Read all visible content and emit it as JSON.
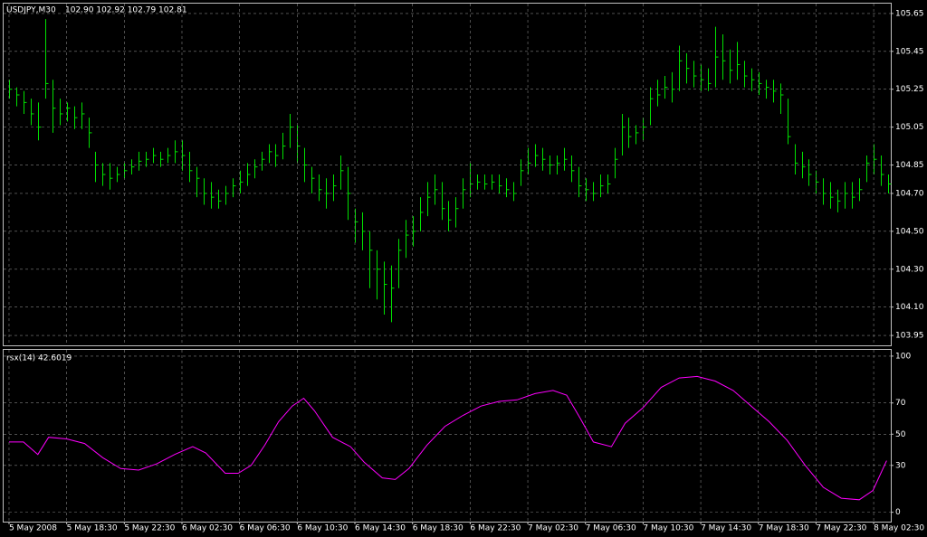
{
  "chart_data": [
    {
      "type": "ohlc",
      "title": "USDJPY,M30",
      "subtitle": "102.90 102.92 102.79 102.81",
      "color": "#00e000",
      "grid": true,
      "xlim": [
        -0.75,
        122.375
      ],
      "ylim": [
        103.898,
        105.702
      ],
      "yticks": [
        105.65,
        105.45,
        105.25,
        105.05,
        104.85,
        {
          "value": 104.7,
          "label": "104.70"
        },
        {
          "value": 104.5,
          "label": "104.50"
        },
        {
          "value": 104.3,
          "label": "104.30"
        },
        {
          "value": 104.1,
          "label": "104.10"
        },
        103.95
      ],
      "high": [
        105.3,
        105.26,
        105.24,
        105.2,
        105.18,
        105.62,
        105.3,
        105.2,
        105.18,
        105.16,
        105.18,
        105.1,
        104.92,
        104.86,
        104.86,
        104.84,
        104.86,
        104.88,
        104.92,
        104.92,
        104.94,
        104.92,
        104.94,
        104.98,
        104.98,
        104.92,
        104.84,
        104.78,
        104.76,
        104.72,
        104.74,
        104.78,
        104.82,
        104.86,
        104.88,
        104.92,
        104.96,
        104.96,
        105.02,
        105.12,
        105.06,
        104.94,
        104.84,
        104.8,
        104.78,
        104.8,
        104.9,
        104.84,
        104.62,
        104.6,
        104.5,
        104.4,
        104.34,
        104.32,
        104.46,
        104.56,
        104.58,
        104.68,
        104.76,
        104.8,
        104.76,
        104.66,
        104.68,
        104.78,
        104.86,
        104.8,
        104.8,
        104.8,
        104.8,
        104.78,
        104.76,
        104.88,
        104.94,
        104.96,
        104.94,
        104.9,
        104.9,
        104.94,
        104.9,
        104.84,
        104.78,
        104.76,
        104.8,
        104.8,
        104.94,
        105.12,
        105.1,
        105.06,
        105.1,
        105.26,
        105.3,
        105.32,
        105.34,
        105.48,
        105.44,
        105.4,
        105.38,
        105.36,
        105.58,
        105.54,
        105.46,
        105.5,
        105.4,
        105.36,
        105.34,
        105.3,
        105.3,
        105.28,
        105.2,
        104.96,
        104.92,
        104.88,
        104.82,
        104.78,
        104.76,
        104.72,
        104.76,
        104.76,
        104.78,
        104.9,
        104.96,
        104.9,
        104.8
      ],
      "low": [
        105.2,
        105.16,
        105.12,
        105.06,
        104.98,
        105.2,
        105.02,
        105.06,
        105.08,
        105.04,
        105.04,
        104.94,
        104.76,
        104.74,
        104.72,
        104.76,
        104.78,
        104.8,
        104.82,
        104.84,
        104.86,
        104.84,
        104.86,
        104.86,
        104.82,
        104.76,
        104.68,
        104.64,
        104.62,
        104.62,
        104.64,
        104.68,
        104.7,
        104.74,
        104.78,
        104.82,
        104.86,
        104.84,
        104.88,
        104.94,
        104.86,
        104.76,
        104.7,
        104.66,
        104.62,
        104.66,
        104.72,
        104.56,
        104.44,
        104.4,
        104.2,
        104.14,
        104.06,
        104.02,
        104.2,
        104.36,
        104.42,
        104.5,
        104.58,
        104.64,
        104.56,
        104.5,
        104.52,
        104.62,
        104.68,
        104.72,
        104.72,
        104.72,
        104.7,
        104.68,
        104.66,
        104.74,
        104.8,
        104.84,
        104.82,
        104.8,
        104.8,
        104.82,
        104.76,
        104.68,
        104.66,
        104.66,
        104.68,
        104.7,
        104.78,
        104.9,
        104.94,
        104.96,
        104.98,
        105.06,
        105.16,
        105.2,
        105.18,
        105.24,
        105.28,
        105.26,
        105.24,
        105.24,
        105.26,
        105.3,
        105.28,
        105.3,
        105.26,
        105.24,
        105.22,
        105.2,
        105.18,
        105.12,
        104.96,
        104.8,
        104.78,
        104.74,
        104.7,
        104.64,
        104.62,
        104.6,
        104.62,
        104.62,
        104.66,
        104.76,
        104.8,
        104.74,
        104.7
      ],
      "close": [
        105.25,
        105.22,
        105.18,
        105.12,
        105.05,
        105.28,
        105.15,
        105.12,
        105.15,
        105.1,
        105.12,
        105.02,
        104.85,
        104.8,
        104.78,
        104.8,
        104.82,
        104.84,
        104.87,
        104.88,
        104.9,
        104.88,
        104.9,
        104.92,
        104.9,
        104.82,
        104.78,
        104.7,
        104.68,
        104.66,
        104.7,
        104.74,
        104.76,
        104.8,
        104.84,
        104.88,
        104.92,
        104.9,
        104.95,
        105.05,
        104.95,
        104.85,
        104.78,
        104.72,
        104.7,
        104.74,
        104.82,
        104.7,
        104.55,
        104.5,
        104.4,
        104.3,
        104.22,
        104.2,
        104.4,
        104.48,
        104.5,
        104.6,
        104.68,
        104.72,
        104.62,
        104.56,
        104.62,
        104.72,
        104.75,
        104.76,
        104.75,
        104.76,
        104.74,
        104.72,
        104.7,
        104.82,
        104.86,
        104.9,
        104.88,
        104.85,
        104.86,
        104.88,
        104.82,
        104.74,
        104.72,
        104.7,
        104.74,
        104.75,
        104.88,
        105.05,
        105.0,
        105.02,
        105.05,
        105.2,
        105.22,
        105.26,
        105.25,
        105.4,
        105.36,
        105.32,
        105.3,
        105.28,
        105.42,
        105.4,
        105.35,
        105.38,
        105.32,
        105.3,
        105.28,
        105.26,
        105.24,
        105.22,
        105.0,
        104.86,
        104.84,
        104.8,
        104.76,
        104.7,
        104.68,
        104.66,
        104.7,
        104.68,
        104.72,
        104.86,
        104.88,
        104.8,
        104.75
      ]
    },
    {
      "type": "line",
      "title": "rsx(14) 42.6019",
      "color": "#ff00ff",
      "grid": true,
      "xlim": [
        -0.75,
        122.375
      ],
      "ylim": [
        -6,
        104
      ],
      "yticks": [
        100,
        70,
        50,
        30,
        0
      ],
      "xticks": [
        {
          "value": 0,
          "label": "5 May 2008"
        },
        {
          "value": 8,
          "label": "5 May 18:30"
        },
        {
          "value": 16,
          "label": "5 May 22:30"
        },
        {
          "value": 24,
          "label": "6 May 02:30"
        },
        {
          "value": 32,
          "label": "6 May 06:30"
        },
        {
          "value": 40,
          "label": "6 May 10:30"
        },
        {
          "value": 48,
          "label": "6 May 14:30"
        },
        {
          "value": 56,
          "label": "6 May 18:30"
        },
        {
          "value": 64,
          "label": "6 May 22:30"
        },
        {
          "value": 72,
          "label": "7 May 02:30"
        },
        {
          "value": 80,
          "label": "7 May 06:30"
        },
        {
          "value": 88,
          "label": "7 May 10:30"
        },
        {
          "value": 96,
          "label": "7 May 14:30"
        },
        {
          "value": 104,
          "label": "7 May 18:30"
        },
        {
          "value": 112,
          "label": "7 May 22:30"
        },
        {
          "value": 120,
          "label": "8 May 02:30"
        }
      ],
      "x": [
        0,
        2,
        4,
        5.5,
        8,
        10.5,
        13,
        15.5,
        18,
        20.5,
        23,
        25.5,
        27.3,
        30,
        31.8,
        33.6,
        35.5,
        37.4,
        39.3,
        40.9,
        42.4,
        44.9,
        47.4,
        49.3,
        51.8,
        53.6,
        55.5,
        58,
        60.5,
        63,
        65.5,
        68,
        70.5,
        73,
        75.5,
        77.4,
        79.3,
        81.1,
        83.6,
        85.5,
        88,
        90.5,
        93,
        95.5,
        98,
        100.5,
        103,
        105.5,
        108,
        110.5,
        113,
        115.5,
        118,
        119.9,
        121.8
      ],
      "values": [
        45,
        45,
        37,
        48,
        47,
        44,
        35,
        28,
        27,
        31,
        37,
        42,
        38,
        25,
        25,
        30,
        43,
        58,
        68,
        73,
        65,
        48,
        42,
        32,
        22,
        21,
        28,
        43,
        55,
        62,
        68,
        71,
        72,
        76,
        78,
        75,
        60,
        45,
        42,
        57,
        67,
        80,
        86,
        87,
        84,
        78,
        68,
        58,
        46,
        30,
        16,
        9,
        8,
        14,
        33
      ]
    }
  ]
}
